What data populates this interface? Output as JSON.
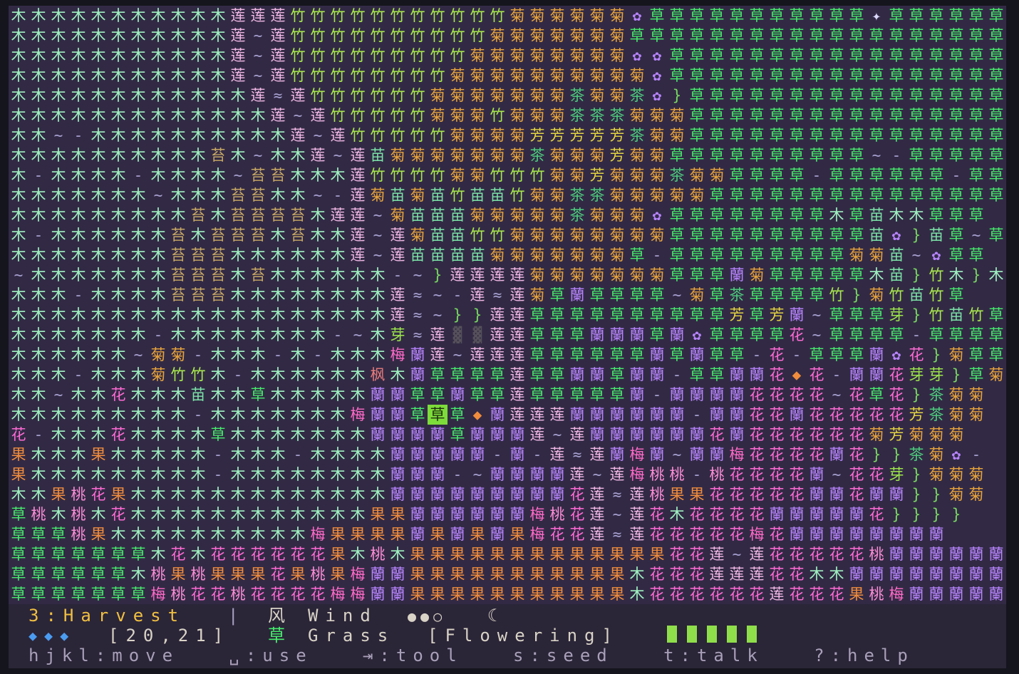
{
  "map": {
    "rows": [
      "木木木木木木木木木木木莲莲莲竹竹竹竹竹竹竹竹竹竹竹菊菊菊菊菊菊✿草草草草草草草草草草草✦草草草草草草草",
      "木木木木木木木木木木木莲~莲竹竹竹竹竹竹竹竹竹竹菊菊菊菊菊菊菊草草草草草草草草草草草草草草草草草草草",
      "木木木木木木木木木木木莲~莲竹竹竹竹竹竹竹竹竹菊菊菊菊菊菊菊菊✿✿草草草草草草草草草草草草草草草草草",
      "木木木木木木木木木木木莲~莲竹竹竹竹竹竹竹竹菊菊菊菊菊菊菊菊菊菊✿草草草草草草草草草草草草草草草草草",
      "木木木木木木木木木木木木莲≈莲竹竹竹竹竹竹菊菊菊菊菊菊菊茶菊菊茶✿}草草草草草草草草草草草草草草草草",
      "木木木木木木木木木木木木木莲~莲竹竹竹竹竹菊菊菊竹菊菊菊茶茶茶菊菊菊草草草草草草草草草草草草草草草草",
      "木木~-木木木木木木木木木木莲~莲竹竹竹竹竹菊菊菊菊芳芳芳芳芳茶菊菊草草草草草草草草草草草草草草草草",
      "木木木木木木木木木木苔木~木木莲~莲苗菊菊菊菊菊菊菊茶菊菊菊芳菊菊草草草草草草草草草草~-草草草草草",
      "木-木木木木-木木木木~苔苔木木木莲竹竹竹竹菊菊竹竹竹菊菊芳菊菊菊茶菊菊草草草草-草草草草草草-草草草草草",
      "木木木木木木木~木木木苔苔木木~-莲菊苗菊苗竹苗苗竹菊菊茶茶菊菊菊菊菊草草草草草草草草草草草草草草草",
      "木木木木木木木木木苔木苔苔苔苔木莲莲~菊苗苗苗菊菊菊菊菊茶菊菊菊✿草草草草草草草草木草苗木木草草草",
      "木-木木木木木木苔木苔苔苔木苔木木莲~莲菊苗苗竹竹菊菊菊菊菊菊菊菊草草草草草草草草草草苗✿}苗草~草",
      "木木木木木木木木苔苔苔木木木木木木莲~莲苗苗苗苗菊菊菊菊菊菊菊草-草草草草草草草草草菊菊苗~✿草草",
      "~木木木木木木木苔苔苔木苔木木木木木木-~}莲莲莲莲菊菊菊菊菊菊菊草草草蘭菊草草草草草木苗}竹木}木草",
      "木木木-木木木木苔苔苔木木木木木木木木莲≈~-莲≈莲菊草蘭草草草草~菊草茶草草草草竹}菊竹苗竹草",
      "木木木木木木木木木木木木木木木木木木木莲≈~}}莲莲草草草草草草草草草草芳草芳蘭~草草草芽}竹苗竹草",
      "木木木木木木木-木木木木木木木木-~木芽≈莲▓▓莲莲草草草蘭蘭蘭草蘭✿草草草草花~草草草草-草草草草",
      "木木木木木木~菊菊-木木木-木-木木木梅蘭莲~莲莲莲草草草草草草蘭草蘭草草-花-草草草蘭✿花}菊草草",
      "木木木-木木木菊竹竹木-木木木木木木枫木蘭草草草草莲草草蘭蘭草蘭蘭-草草蘭蘭花◆花-蘭蘭花芽芽}草菊",
      "木木~木木花木木木苗木木草木木木木木蘭蘭草草蘭草草莲草草草草草蘭-蘭蘭蘭蘭花花花花~花草花}茶菊菊",
      "木木木木木木木木木-木木木木木木木梅蘭蘭草草草◆蘭莲莲莲蘭蘭蘭蘭蘭蘭-蘭蘭花花蘭花花花花花芳茶菊菊",
      "花-木木木花木木木木草木木木木木木木蘭蘭蘭蘭草蘭蘭蘭莲~莲蘭蘭蘭蘭蘭蘭花蘭花花花花花花菊芳菊菊菊",
      "果木木木果木木木木木-木木木-木木木木蘭蘭蘭蘭蘭-蘭-莲≈莲蘭梅蘭~蘭蘭梅花花花花蘭花}}茶菊✿-",
      "果木木木木木木木木木-木木木木木木木木蘭蘭蘭-~蘭蘭蘭蘭莲~莲梅桃桃-桃花花花花蘭~花花芽}菊菊菊",
      "木木果桃花果木木木木木木木木木木木木木蘭蘭蘭蘭蘭蘭蘭蘭蘭花莲≈莲桃果果花花花花花蘭蘭花蘭蘭}}菊菊",
      "草桃木桃木花木木木木木木木木木木木木果果蘭蘭蘭蘭蘭蘭梅桃花莲~莲花木花花花花蘭蘭蘭蘭蘭花}}}}",
      "草草草桃果木木木木木木木木木木梅果果果果蘭果蘭果蘭果梅花花莲≈莲花花花花花梅花蘭蘭蘭蘭蘭蘭蘭蘭",
      "草草草草草草草木花木花花花花花花果木桃木果果果果果果果果果果果果果花花莲~莲花花花花花桃蘭蘭蘭蘭蘭蘭蘭蘭",
      "草草草草草草木桃果桃果果果花果桃果梅蘭蘭果果果果果果果果果果果木花花花莲莲莲花花木木蘭蘭蘭蘭蘭蘭蘭蘭",
      "草草草草草草草梅桃花花桃花花花花梅梅蘭蘭果果果果果果果果果果果木花花花花花花莲花花花果桃梅蘭蘭蘭蘭蘭蘭蘭"
    ],
    "colors": {
      "木": "#9ff0c0",
      "莲": "#f2b8e6",
      "竹": "#a8e84c",
      "菊": "#e8a43c",
      "草": "#46ec6c",
      "苔": "#c8a864",
      "茶": "#4ccc7c",
      "芳": "#e6d642",
      "苗": "#7ce4a8",
      "蘭": "#b884ff",
      "花": "#ff6ad4",
      "梅": "#ff6ac8",
      "桃": "#ff8ed8",
      "果": "#f08c3c",
      "芽": "#9ee84c",
      "枫": "#e87c7c",
      "~": "#a8a0d0",
      "≈": "#a8a0d0",
      "-": "#a8a0d0",
      "}": "#78d860",
      "✿": "#b884ff",
      "✦": "#dcd8ff",
      "◆": "#f08c3c",
      "▓": "#55505a"
    },
    "cursor": {
      "row": 20,
      "col": 21
    }
  },
  "hud": {
    "season": "3:Harvest",
    "sep": "|",
    "wind_glyph": "风",
    "wind_label": "Wind",
    "wind_dots": "●●○",
    "moon": "☾",
    "diamonds": "◆◆◆",
    "coords": "[20,21]",
    "tile_glyph": "草",
    "tile_name": "Grass",
    "tile_state": "[Flowering]",
    "keys": "hjkl:move   ␣:use   ⇥:tool   s:seed   t:talk   ?:help"
  }
}
